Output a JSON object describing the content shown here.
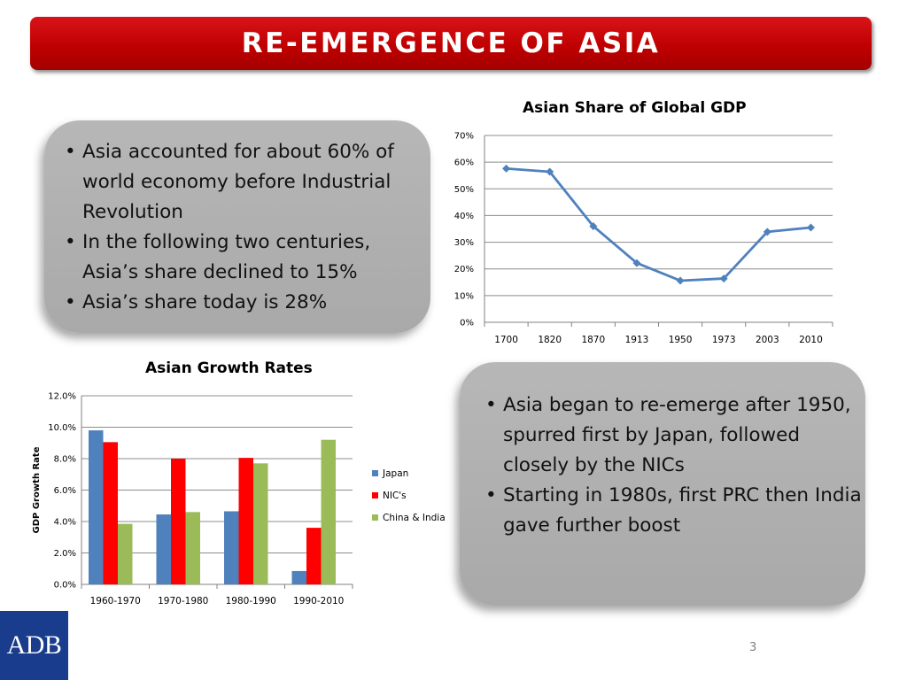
{
  "slide": {
    "title": "RE-EMERGENCE OF ASIA",
    "page_number": "3",
    "logo_text": "ADB"
  },
  "left_panel": {
    "bullets": [
      "Asia accounted for about 60% of world economy before Industrial Revolution",
      "In the following two centuries, Asia’s share declined to 15%",
      "Asia’s share today is 28%"
    ]
  },
  "right_panel": {
    "bullets": [
      "Asia began to re-emerge after 1950, spurred first by Japan, followed closely by the NICs",
      "Starting in 1980s, first PRC then India gave further boost"
    ]
  },
  "colors": {
    "banner": "#c00000",
    "line_series": "#4f81bd",
    "japan": "#4f81bd",
    "nics": "#ff0000",
    "china_india": "#9bbb59"
  },
  "chart_data": [
    {
      "type": "line",
      "title": "Asian Share of Global GDP",
      "categories": [
        "1700",
        "1820",
        "1870",
        "1913",
        "1950",
        "1973",
        "2003",
        "2010"
      ],
      "series": [
        {
          "name": "Asian share",
          "values": [
            57.6,
            56.4,
            36.0,
            22.2,
            15.6,
            16.4,
            33.9,
            35.5
          ]
        }
      ],
      "y_ticks": [
        "0%",
        "10%",
        "20%",
        "30%",
        "40%",
        "50%",
        "60%",
        "70%"
      ],
      "ylim": [
        0,
        70
      ],
      "xlabel": "",
      "ylabel": "",
      "grid": true,
      "legend": "none"
    },
    {
      "type": "bar",
      "title": "Asian Growth Rates",
      "categories": [
        "1960-1970",
        "1970-1980",
        "1980-1990",
        "1990-2010"
      ],
      "series": [
        {
          "name": "Japan",
          "values": [
            9.8,
            4.45,
            4.65,
            0.85
          ]
        },
        {
          "name": "NIC's",
          "values": [
            9.05,
            8.0,
            8.05,
            3.6
          ]
        },
        {
          "name": "China & India",
          "values": [
            3.85,
            4.6,
            7.7,
            9.2
          ]
        }
      ],
      "y_ticks": [
        "0.0%",
        "2.0%",
        "4.0%",
        "6.0%",
        "8.0%",
        "10.0%",
        "12.0%"
      ],
      "ylim": [
        0,
        12
      ],
      "xlabel": "",
      "ylabel": "GDP Growth Rate",
      "grid": true,
      "legend": "right"
    }
  ]
}
